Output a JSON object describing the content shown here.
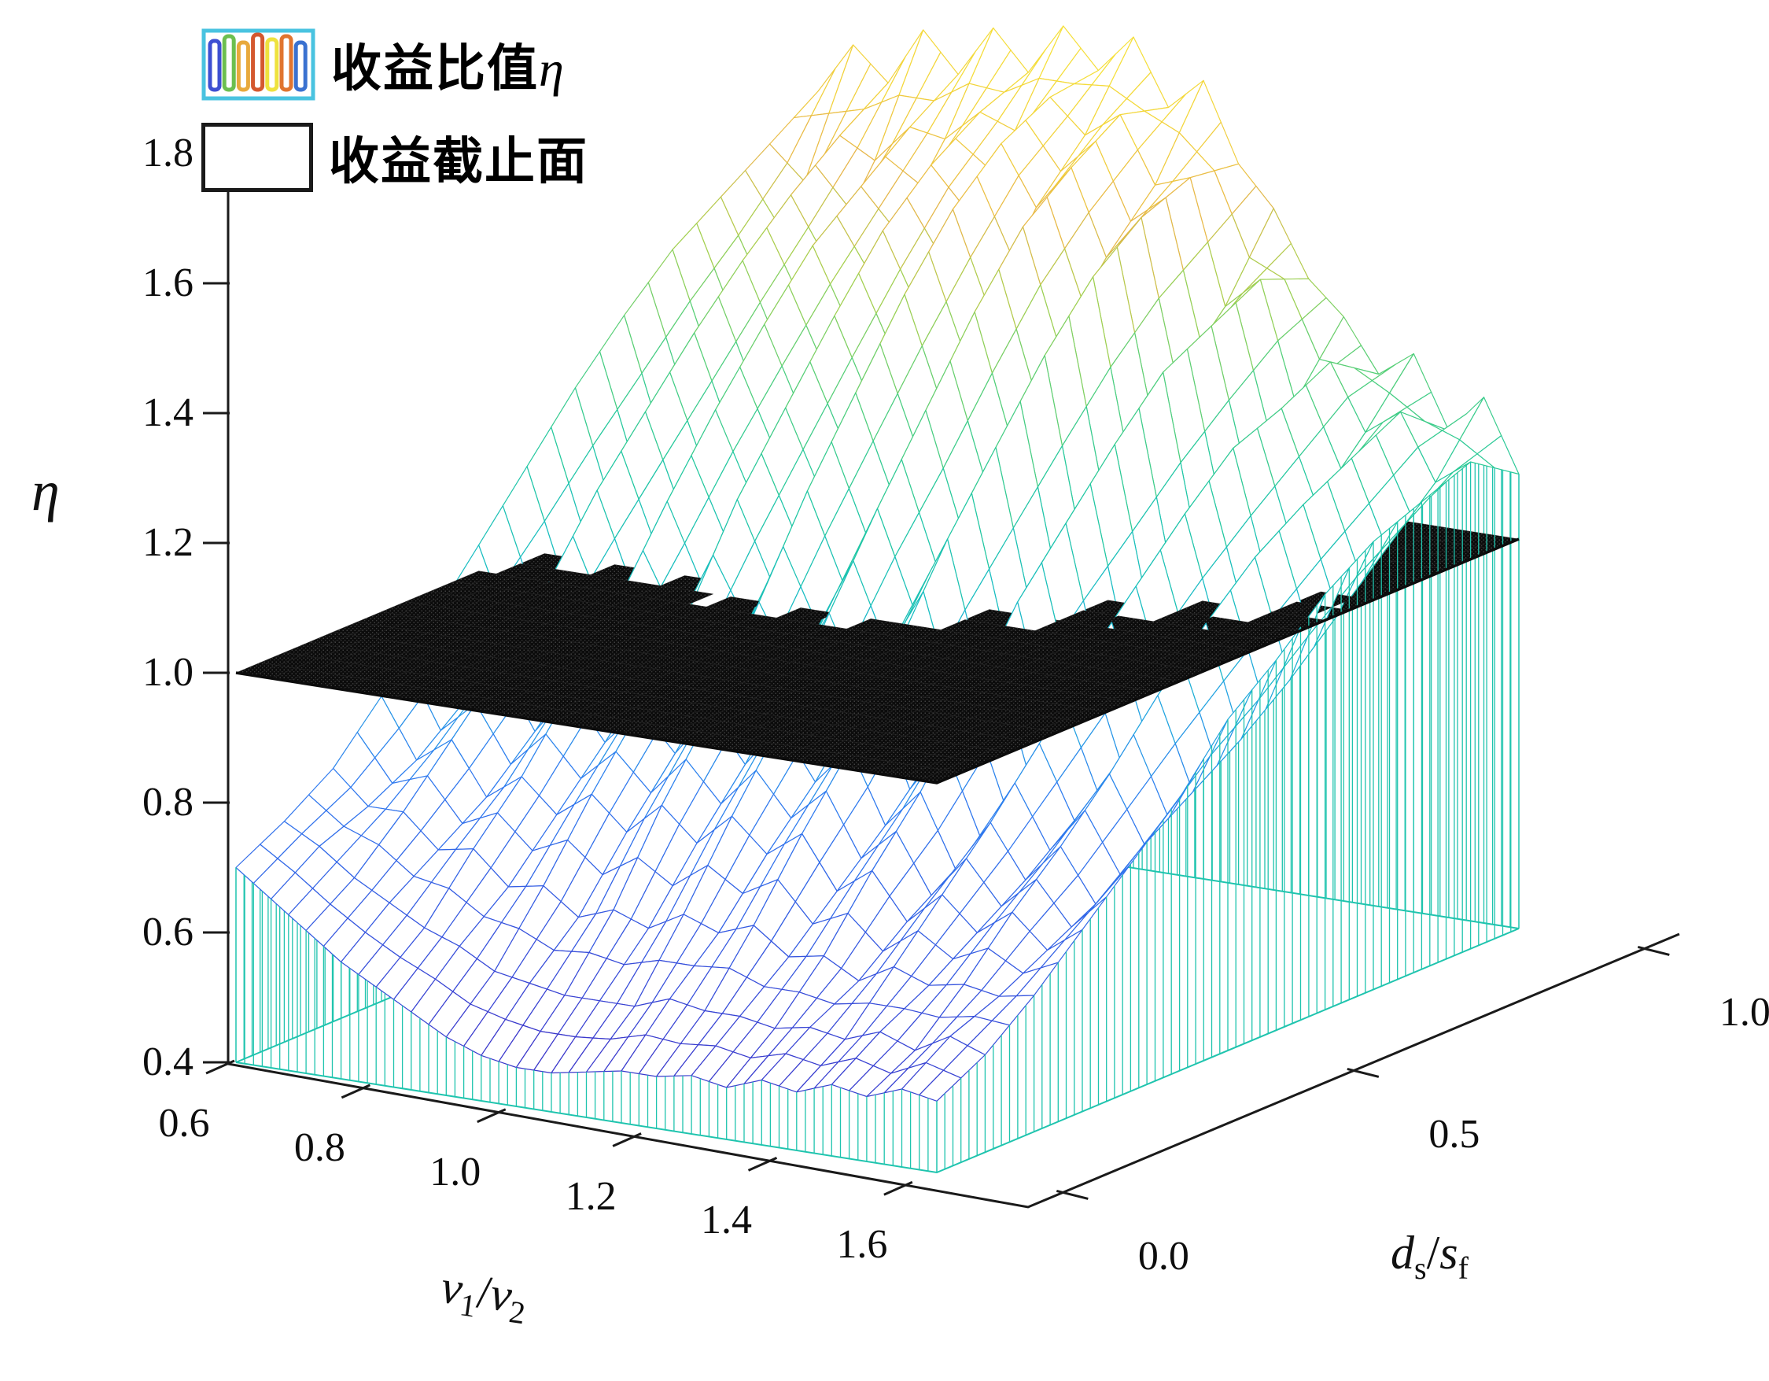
{
  "figure": {
    "background": "#ffffff",
    "kind": "3d-mesh-surface-with-cutoff-plane"
  },
  "legend": {
    "items": [
      {
        "label": "收益比值",
        "symbol": "η",
        "swatch": "mesh"
      },
      {
        "label": "收益截止面",
        "symbol": "",
        "swatch": "plane"
      }
    ],
    "mesh_swatch": {
      "border_color": "#49c3e0",
      "bar_colors": [
        "#3d4fd2",
        "#6cbf4f",
        "#e8a93c",
        "#d4582f",
        "#eee23e",
        "#e0742f",
        "#3a71d0"
      ]
    },
    "plane_swatch": {
      "fill": "#ffffff",
      "border_color": "#1a1a1a"
    }
  },
  "axes": {
    "x": {
      "symbol1": "v",
      "sub1": "1",
      "sep": "/",
      "symbol2": "v",
      "sub2": "2",
      "ticks": [
        "0.6",
        "0.8",
        "1.0",
        "1.2",
        "1.4",
        "1.6"
      ],
      "range": [
        0.6,
        1.6
      ]
    },
    "y": {
      "symbol1": "d",
      "sub1": "s",
      "sep": "/",
      "symbol2": "s",
      "sub2": "f",
      "ticks": [
        "0.0",
        "0.5",
        "1.0"
      ],
      "range": [
        0.0,
        1.0
      ]
    },
    "z": {
      "label": "η",
      "ticks": [
        "0.4",
        "0.6",
        "0.8",
        "1.0",
        "1.2",
        "1.4",
        "1.6",
        "1.8"
      ],
      "range": [
        0.4,
        1.8
      ]
    }
  },
  "chart_data": {
    "type": "surface",
    "title": "",
    "xlabel": "v1/v2",
    "ylabel": "ds/sf",
    "zlabel": "η (profit ratio)",
    "xlim": [
      0.6,
      1.6
    ],
    "ylim": [
      0.0,
      1.0
    ],
    "zlim": [
      0.4,
      1.8
    ],
    "series_name": "收益比值η",
    "cutoff_plane": {
      "label": "收益截止面",
      "z": 1.0,
      "color": "#0c0c0c"
    },
    "skirt_color": "#1fc4ae",
    "axis_color": "#1a1a1a",
    "colormap": [
      [
        0.0,
        "#3b32c8"
      ],
      [
        0.12,
        "#3557e0"
      ],
      [
        0.25,
        "#2f7cf0"
      ],
      [
        0.34,
        "#22a7e0"
      ],
      [
        0.42,
        "#18bdc2"
      ],
      [
        0.52,
        "#22c8a0"
      ],
      [
        0.62,
        "#52cf7a"
      ],
      [
        0.72,
        "#a6d04e"
      ],
      [
        0.8,
        "#e7b64b"
      ],
      [
        0.88,
        "#f2d23c"
      ],
      [
        1.0,
        "#f8ea38"
      ]
    ],
    "color_range": [
      0.46,
      1.7
    ],
    "x": [
      0.6,
      0.65,
      0.7,
      0.75,
      0.8,
      0.85,
      0.9,
      0.95,
      1.0,
      1.05,
      1.1,
      1.15,
      1.2,
      1.25,
      1.3,
      1.35,
      1.4,
      1.45,
      1.5,
      1.55,
      1.6
    ],
    "y": [
      0.0,
      0.083,
      0.167,
      0.25,
      0.333,
      0.417,
      0.5,
      0.583,
      0.667,
      0.75,
      0.833,
      0.917,
      1.0
    ],
    "z_matrix": [
      [
        0.7,
        0.66,
        0.62,
        0.58,
        0.55,
        0.52,
        0.49,
        0.47,
        0.46,
        0.46,
        0.47,
        0.48,
        0.48,
        0.49,
        0.48,
        0.5,
        0.49,
        0.51,
        0.5,
        0.52,
        0.51
      ],
      [
        0.74,
        0.71,
        0.67,
        0.64,
        0.61,
        0.59,
        0.56,
        0.55,
        0.54,
        0.54,
        0.54,
        0.56,
        0.55,
        0.55,
        0.54,
        0.55,
        0.54,
        0.56,
        0.54,
        0.57,
        0.55
      ],
      [
        0.79,
        0.74,
        0.74,
        0.69,
        0.7,
        0.65,
        0.66,
        0.62,
        0.64,
        0.62,
        0.65,
        0.63,
        0.65,
        0.61,
        0.62,
        0.59,
        0.62,
        0.6,
        0.61,
        0.6,
        0.61
      ],
      [
        0.87,
        0.78,
        0.82,
        0.74,
        0.78,
        0.73,
        0.77,
        0.72,
        0.77,
        0.72,
        0.77,
        0.72,
        0.76,
        0.68,
        0.72,
        0.65,
        0.7,
        0.65,
        0.69,
        0.64,
        0.68
      ],
      [
        0.95,
        0.84,
        0.9,
        0.81,
        0.88,
        0.81,
        0.87,
        0.81,
        0.88,
        0.81,
        0.88,
        0.8,
        0.86,
        0.75,
        0.81,
        0.7,
        0.78,
        0.7,
        0.76,
        0.68,
        0.75
      ],
      [
        1.04,
        0.9,
        1.0,
        0.89,
        0.99,
        0.9,
        0.99,
        0.91,
        1.02,
        0.92,
        1.02,
        0.9,
        0.99,
        0.83,
        0.92,
        0.77,
        0.87,
        0.76,
        0.84,
        0.74,
        0.82
      ],
      [
        1.13,
        0.97,
        1.11,
        0.97,
        1.11,
        0.99,
        1.13,
        1.01,
        1.16,
        1.03,
        1.15,
        1.01,
        1.12,
        0.91,
        1.04,
        0.83,
        0.97,
        0.81,
        0.93,
        0.79,
        0.91
      ],
      [
        1.22,
        1.05,
        1.2,
        1.06,
        1.22,
        1.1,
        1.24,
        1.12,
        1.28,
        1.14,
        1.27,
        1.1,
        1.23,
        0.99,
        1.13,
        0.9,
        1.05,
        0.87,
        1.01,
        0.84,
        0.97
      ],
      [
        1.3,
        1.13,
        1.29,
        1.15,
        1.32,
        1.2,
        1.35,
        1.23,
        1.4,
        1.25,
        1.39,
        1.21,
        1.34,
        1.07,
        1.22,
        0.96,
        1.13,
        0.94,
        1.08,
        0.9,
        1.04
      ],
      [
        1.37,
        1.22,
        1.37,
        1.25,
        1.41,
        1.3,
        1.45,
        1.34,
        1.5,
        1.36,
        1.49,
        1.32,
        1.43,
        1.16,
        1.3,
        1.03,
        1.2,
        1.0,
        1.13,
        0.97,
        1.09
      ],
      [
        1.42,
        1.31,
        1.44,
        1.35,
        1.47,
        1.41,
        1.52,
        1.46,
        1.57,
        1.48,
        1.55,
        1.42,
        1.49,
        1.25,
        1.34,
        1.12,
        1.23,
        1.09,
        1.17,
        1.04,
        1.12
      ],
      [
        1.47,
        1.42,
        1.5,
        1.47,
        1.53,
        1.52,
        1.57,
        1.55,
        1.61,
        1.56,
        1.6,
        1.5,
        1.52,
        1.33,
        1.38,
        1.2,
        1.27,
        1.17,
        1.21,
        1.11,
        1.15
      ],
      [
        1.52,
        1.6,
        1.55,
        1.64,
        1.58,
        1.66,
        1.6,
        1.68,
        1.62,
        1.68,
        1.58,
        1.63,
        1.51,
        1.45,
        1.35,
        1.3,
        1.22,
        1.26,
        1.15,
        1.21,
        1.1
      ]
    ]
  }
}
